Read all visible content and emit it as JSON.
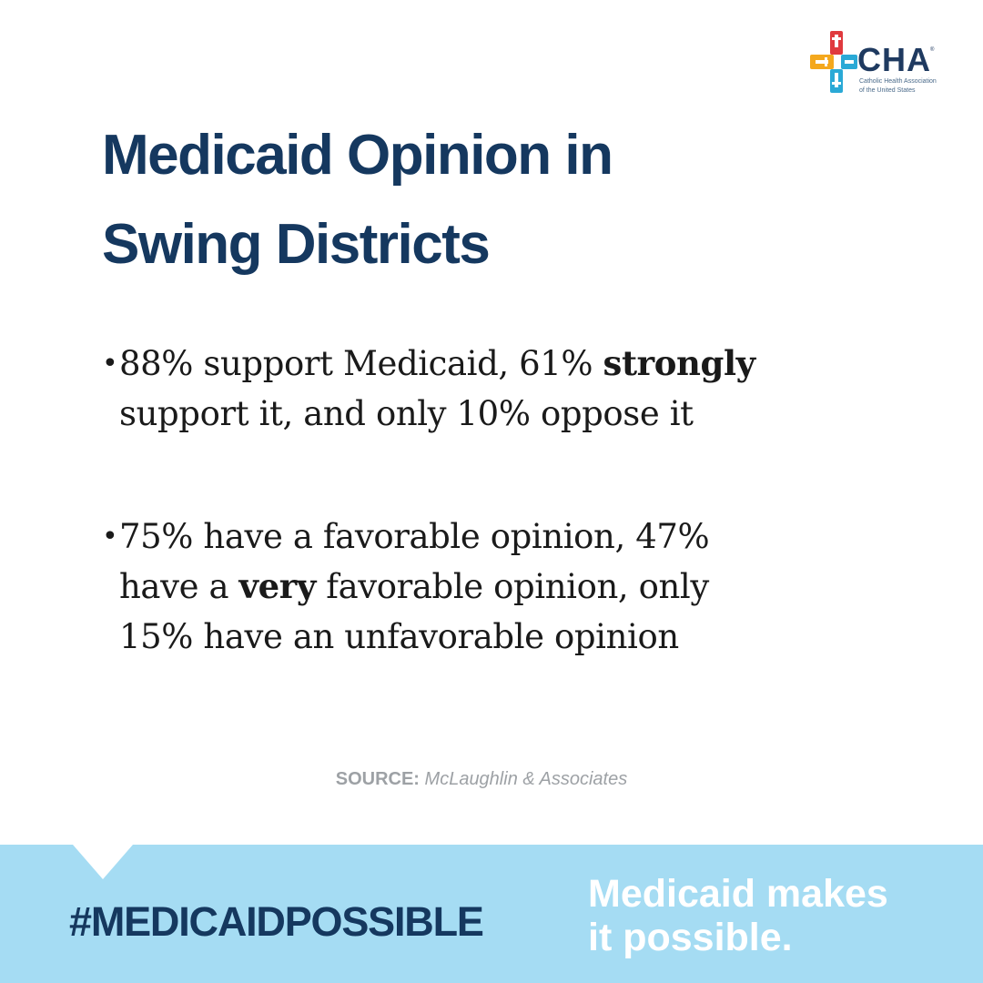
{
  "logo": {
    "name": "CHA",
    "registered": "®",
    "subtitle_line1": "Catholic Health Association",
    "subtitle_line2": "of the United States",
    "colors": {
      "red": "#e03a3e",
      "orange": "#f4a81d",
      "blue": "#2aa9d6",
      "text": "#1f3a60"
    }
  },
  "title": {
    "line1": "Medicaid Opinion in",
    "line2": "Swing Districts"
  },
  "bullets": [
    {
      "marker": "•",
      "line1_before": "88% support Medicaid, 61% ",
      "line1_bold": "strongly",
      "line2": "support it, and only 10% oppose it"
    },
    {
      "marker": "•",
      "line1": "75% have a favorable opinion, 47%",
      "line2_before": "have a ",
      "line2_bold": "very",
      "line2_after": " favorable opinion, only",
      "line3": "15% have an unfavorable opinion"
    }
  ],
  "source": {
    "label": "SOURCE:",
    "name": "McLaughlin & Associates"
  },
  "footer": {
    "hashtag": "#MEDICAIDPOSSIBLE",
    "tagline_line1": "Medicaid makes",
    "tagline_line2": "it possible.",
    "colors": {
      "band": "#a5dcf3",
      "hashtag": "#15385f",
      "tagline": "#ffffff"
    }
  }
}
